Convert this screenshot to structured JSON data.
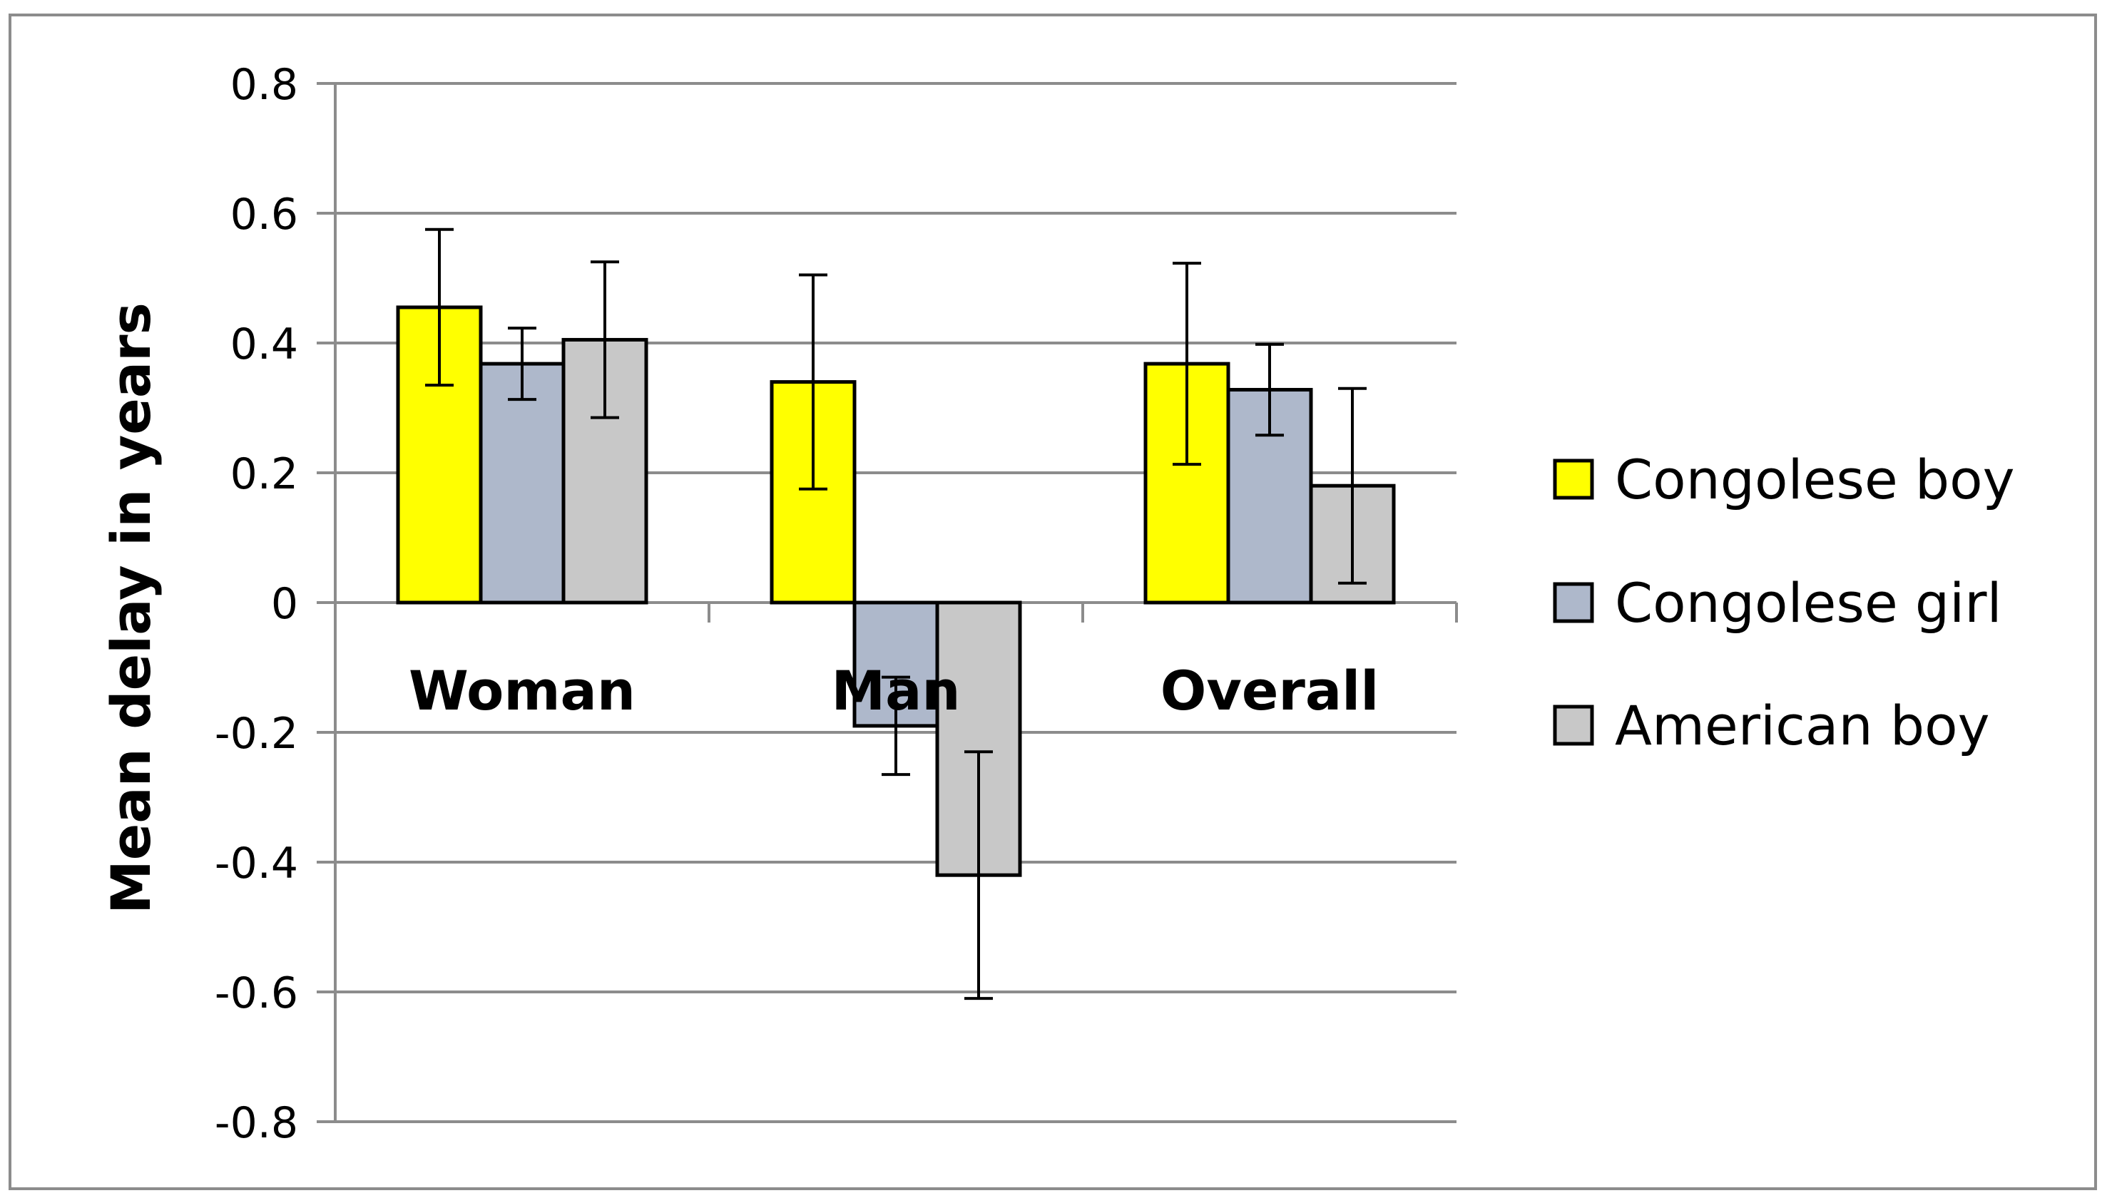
{
  "chart_data": {
    "type": "bar",
    "title": "",
    "xlabel": "",
    "ylabel": "Mean delay in years",
    "ylim": [
      -0.8,
      0.8
    ],
    "yticks": [
      0.8,
      0.6,
      0.4,
      0.2,
      0,
      -0.2,
      -0.4,
      -0.6,
      -0.8
    ],
    "ytick_labels": [
      "0.8",
      "0.6",
      "0.4",
      "0.2",
      "0",
      "-0.2",
      "-0.4",
      "-0.6",
      "-0.8"
    ],
    "grid": true,
    "legend_position": "right",
    "categories": [
      "Woman",
      "Man",
      "Overall"
    ],
    "series": [
      {
        "name": "Congolese boy",
        "color": "#FFFF00",
        "values": [
          0.455,
          0.34,
          0.368
        ],
        "error": [
          0.12,
          0.165,
          0.155
        ]
      },
      {
        "name": "Congolese girl",
        "color": "#AEB8CB",
        "values": [
          0.368,
          -0.19,
          0.328
        ],
        "error": [
          0.055,
          0.075,
          0.07
        ]
      },
      {
        "name": "American boy",
        "color": "#C8C8C8",
        "values": [
          0.405,
          -0.42,
          0.18
        ],
        "error": [
          0.12,
          0.19,
          0.15
        ]
      }
    ]
  }
}
